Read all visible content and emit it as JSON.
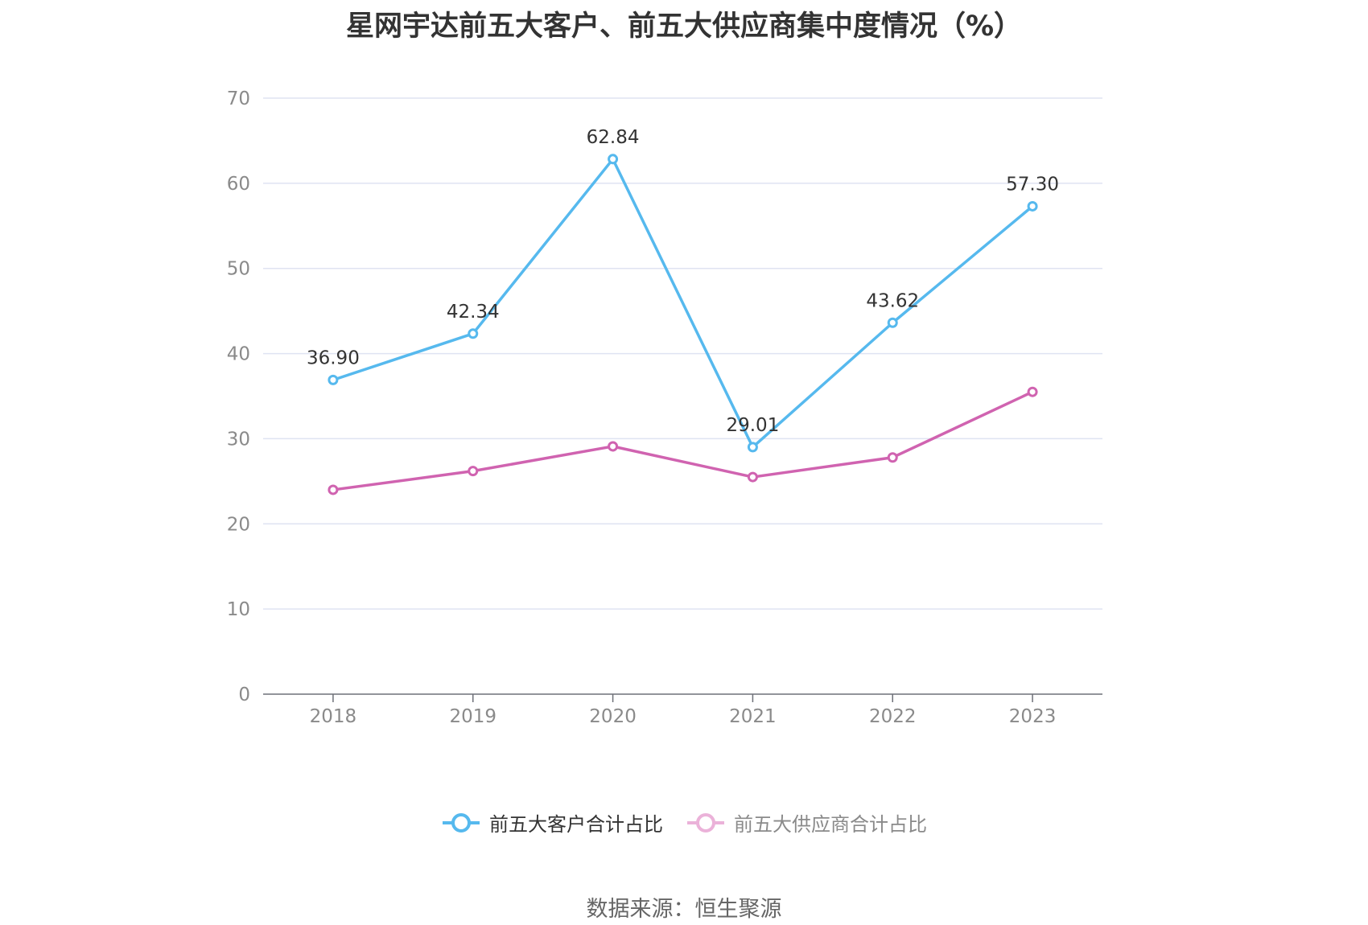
{
  "title": "星网宇达前五大客户、前五大供应商集中度情况（%）",
  "source": "数据来源：恒生聚源",
  "chart_data": {
    "type": "line",
    "categories": [
      "2018",
      "2019",
      "2020",
      "2021",
      "2022",
      "2023"
    ],
    "ylim": [
      0,
      70
    ],
    "yticks": [
      0,
      10,
      20,
      30,
      40,
      50,
      60,
      70
    ],
    "grid": true,
    "legend_position": "bottom",
    "series": [
      {
        "name": "前五大客户合计占比",
        "color": "#56b9ee",
        "values": [
          36.9,
          42.34,
          62.84,
          29.01,
          43.62,
          57.3
        ],
        "labels": [
          "36.90",
          "42.34",
          "62.84",
          "29.01",
          "43.62",
          "57.30"
        ]
      },
      {
        "name": "前五大供应商合计占比",
        "color": "#d063b0",
        "legend_color": "#ebb2d9",
        "values": [
          24.0,
          26.2,
          29.1,
          25.5,
          27.8,
          35.5
        ]
      }
    ]
  }
}
